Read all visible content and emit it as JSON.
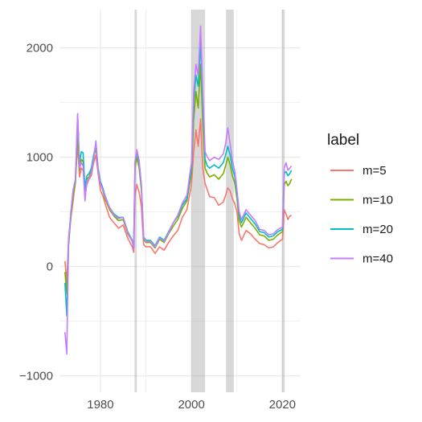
{
  "chart_data": {
    "type": "line",
    "title": "",
    "xlabel": "",
    "ylabel": "",
    "xlim": [
      1971,
      2024
    ],
    "ylim": [
      -1150,
      2350
    ],
    "x_ticks": [
      1980,
      2000,
      2020
    ],
    "x_tick_labels": [
      "1980",
      "2000",
      "2020"
    ],
    "y_ticks": [
      -1000,
      0,
      1000,
      2000
    ],
    "y_tick_labels": [
      "−1000",
      "0",
      "1000",
      "2000"
    ],
    "grid": true,
    "legend": {
      "title": "label",
      "position": "right"
    },
    "shaded_intervals": [
      [
        1987.5,
        1988.0
      ],
      [
        2000.0,
        2003.0
      ],
      [
        2007.6,
        2009.3
      ],
      [
        2019.9,
        2020.5
      ]
    ],
    "series": [
      {
        "name": "m=5",
        "color": "#F8766D",
        "points": [
          [
            1972.2,
            50
          ],
          [
            1972.6,
            -150
          ],
          [
            1973.0,
            250
          ],
          [
            1973.5,
            450
          ],
          [
            1974.0,
            600
          ],
          [
            1974.5,
            780
          ],
          [
            1975.0,
            1120
          ],
          [
            1975.4,
            820
          ],
          [
            1975.8,
            900
          ],
          [
            1976.2,
            880
          ],
          [
            1976.6,
            650
          ],
          [
            1977.0,
            750
          ],
          [
            1977.5,
            800
          ],
          [
            1978.0,
            830
          ],
          [
            1978.5,
            950
          ],
          [
            1979.0,
            1020
          ],
          [
            1979.5,
            850
          ],
          [
            1980.0,
            700
          ],
          [
            1980.5,
            650
          ],
          [
            1981.0,
            580
          ],
          [
            1982.0,
            450
          ],
          [
            1983.0,
            400
          ],
          [
            1984.0,
            350
          ],
          [
            1985.0,
            380
          ],
          [
            1986.0,
            260
          ],
          [
            1987.0,
            180
          ],
          [
            1987.3,
            130
          ],
          [
            1987.6,
            650
          ],
          [
            1988.0,
            750
          ],
          [
            1988.5,
            680
          ],
          [
            1989.0,
            550
          ],
          [
            1989.5,
            200
          ],
          [
            1990.0,
            180
          ],
          [
            1991.0,
            180
          ],
          [
            1992.0,
            120
          ],
          [
            1993.0,
            180
          ],
          [
            1994.0,
            150
          ],
          [
            1995.0,
            220
          ],
          [
            1996.0,
            280
          ],
          [
            1997.0,
            330
          ],
          [
            1998.0,
            450
          ],
          [
            1999.0,
            520
          ],
          [
            2000.0,
            750
          ],
          [
            2000.5,
            1050
          ],
          [
            2001.0,
            1250
          ],
          [
            2001.5,
            1100
          ],
          [
            2002.0,
            1350
          ],
          [
            2002.5,
            900
          ],
          [
            2003.0,
            760
          ],
          [
            2003.5,
            700
          ],
          [
            2004.0,
            640
          ],
          [
            2005.0,
            630
          ],
          [
            2006.0,
            560
          ],
          [
            2007.0,
            590
          ],
          [
            2007.5,
            650
          ],
          [
            2008.0,
            720
          ],
          [
            2008.5,
            690
          ],
          [
            2009.0,
            620
          ],
          [
            2009.5,
            580
          ],
          [
            2010.0,
            500
          ],
          [
            2010.5,
            300
          ],
          [
            2011.0,
            240
          ],
          [
            2012.0,
            330
          ],
          [
            2013.0,
            300
          ],
          [
            2014.0,
            250
          ],
          [
            2015.0,
            210
          ],
          [
            2016.0,
            200
          ],
          [
            2017.0,
            170
          ],
          [
            2018.0,
            180
          ],
          [
            2019.0,
            220
          ],
          [
            2020.0,
            250
          ],
          [
            2020.4,
            520
          ],
          [
            2020.8,
            480
          ],
          [
            2021.2,
            430
          ],
          [
            2021.6,
            460
          ],
          [
            2022.0,
            470
          ]
        ]
      },
      {
        "name": "m=10",
        "color": "#7CAE00",
        "points": [
          [
            1972.2,
            -50
          ],
          [
            1972.6,
            -250
          ],
          [
            1973.0,
            200
          ],
          [
            1973.5,
            450
          ],
          [
            1974.0,
            650
          ],
          [
            1974.5,
            760
          ],
          [
            1975.0,
            1200
          ],
          [
            1975.4,
            880
          ],
          [
            1975.8,
            980
          ],
          [
            1976.2,
            960
          ],
          [
            1976.6,
            700
          ],
          [
            1977.0,
            800
          ],
          [
            1977.5,
            820
          ],
          [
            1978.0,
            880
          ],
          [
            1978.5,
            1000
          ],
          [
            1979.0,
            1080
          ],
          [
            1979.5,
            880
          ],
          [
            1980.0,
            760
          ],
          [
            1980.5,
            700
          ],
          [
            1981.0,
            620
          ],
          [
            1982.0,
            520
          ],
          [
            1983.0,
            460
          ],
          [
            1984.0,
            420
          ],
          [
            1985.0,
            430
          ],
          [
            1986.0,
            300
          ],
          [
            1987.0,
            230
          ],
          [
            1987.3,
            160
          ],
          [
            1987.6,
            900
          ],
          [
            1988.0,
            1000
          ],
          [
            1988.5,
            900
          ],
          [
            1989.0,
            700
          ],
          [
            1989.5,
            250
          ],
          [
            1990.0,
            220
          ],
          [
            1991.0,
            220
          ],
          [
            1992.0,
            170
          ],
          [
            1993.0,
            250
          ],
          [
            1994.0,
            220
          ],
          [
            1995.0,
            300
          ],
          [
            1996.0,
            370
          ],
          [
            1997.0,
            430
          ],
          [
            1998.0,
            530
          ],
          [
            1999.0,
            600
          ],
          [
            2000.0,
            850
          ],
          [
            2000.5,
            1350
          ],
          [
            2001.0,
            1600
          ],
          [
            2001.5,
            1450
          ],
          [
            2002.0,
            1850
          ],
          [
            2002.5,
            1300
          ],
          [
            2003.0,
            900
          ],
          [
            2003.5,
            850
          ],
          [
            2004.0,
            820
          ],
          [
            2005.0,
            840
          ],
          [
            2006.0,
            800
          ],
          [
            2007.0,
            850
          ],
          [
            2007.5,
            920
          ],
          [
            2008.0,
            1000
          ],
          [
            2008.5,
            930
          ],
          [
            2009.0,
            830
          ],
          [
            2009.5,
            770
          ],
          [
            2010.0,
            620
          ],
          [
            2010.5,
            420
          ],
          [
            2011.0,
            360
          ],
          [
            2012.0,
            450
          ],
          [
            2013.0,
            400
          ],
          [
            2014.0,
            350
          ],
          [
            2015.0,
            290
          ],
          [
            2016.0,
            280
          ],
          [
            2017.0,
            240
          ],
          [
            2018.0,
            250
          ],
          [
            2019.0,
            290
          ],
          [
            2020.0,
            320
          ],
          [
            2020.4,
            750
          ],
          [
            2020.8,
            780
          ],
          [
            2021.2,
            740
          ],
          [
            2021.6,
            760
          ],
          [
            2022.0,
            800
          ]
        ]
      },
      {
        "name": "m=20",
        "color": "#00BFC4",
        "points": [
          [
            1972.2,
            -150
          ],
          [
            1972.6,
            -450
          ],
          [
            1973.0,
            200
          ],
          [
            1973.5,
            500
          ],
          [
            1974.0,
            700
          ],
          [
            1974.5,
            790
          ],
          [
            1975.0,
            1380
          ],
          [
            1975.4,
            950
          ],
          [
            1975.8,
            1050
          ],
          [
            1976.2,
            1040
          ],
          [
            1976.6,
            720
          ],
          [
            1977.0,
            830
          ],
          [
            1977.5,
            850
          ],
          [
            1978.0,
            900
          ],
          [
            1978.5,
            1020
          ],
          [
            1979.0,
            1120
          ],
          [
            1979.5,
            900
          ],
          [
            1980.0,
            780
          ],
          [
            1980.5,
            720
          ],
          [
            1981.0,
            650
          ],
          [
            1982.0,
            540
          ],
          [
            1983.0,
            480
          ],
          [
            1984.0,
            450
          ],
          [
            1985.0,
            450
          ],
          [
            1986.0,
            320
          ],
          [
            1987.0,
            240
          ],
          [
            1987.3,
            170
          ],
          [
            1987.6,
            950
          ],
          [
            1988.0,
            1050
          ],
          [
            1988.5,
            950
          ],
          [
            1989.0,
            740
          ],
          [
            1989.5,
            270
          ],
          [
            1990.0,
            240
          ],
          [
            1991.0,
            240
          ],
          [
            1992.0,
            190
          ],
          [
            1993.0,
            270
          ],
          [
            1994.0,
            240
          ],
          [
            1995.0,
            320
          ],
          [
            1996.0,
            400
          ],
          [
            1997.0,
            460
          ],
          [
            1998.0,
            560
          ],
          [
            1999.0,
            620
          ],
          [
            2000.0,
            900
          ],
          [
            2000.5,
            1500
          ],
          [
            2001.0,
            1750
          ],
          [
            2001.5,
            1650
          ],
          [
            2002.0,
            2050
          ],
          [
            2002.5,
            1500
          ],
          [
            2003.0,
            980
          ],
          [
            2003.5,
            920
          ],
          [
            2004.0,
            900
          ],
          [
            2005.0,
            930
          ],
          [
            2006.0,
            900
          ],
          [
            2007.0,
            950
          ],
          [
            2007.5,
            1020
          ],
          [
            2008.0,
            1100
          ],
          [
            2008.5,
            1020
          ],
          [
            2009.0,
            900
          ],
          [
            2009.5,
            830
          ],
          [
            2010.0,
            670
          ],
          [
            2010.5,
            470
          ],
          [
            2011.0,
            400
          ],
          [
            2012.0,
            490
          ],
          [
            2013.0,
            440
          ],
          [
            2014.0,
            390
          ],
          [
            2015.0,
            320
          ],
          [
            2016.0,
            310
          ],
          [
            2017.0,
            270
          ],
          [
            2018.0,
            280
          ],
          [
            2019.0,
            320
          ],
          [
            2020.0,
            340
          ],
          [
            2020.4,
            850
          ],
          [
            2020.8,
            870
          ],
          [
            2021.2,
            830
          ],
          [
            2021.6,
            850
          ],
          [
            2022.0,
            880
          ]
        ]
      },
      {
        "name": "m=40",
        "color": "#C77CFF",
        "points": [
          [
            1972.2,
            -600
          ],
          [
            1972.6,
            -800
          ],
          [
            1973.0,
            250
          ],
          [
            1973.5,
            500
          ],
          [
            1974.0,
            700
          ],
          [
            1974.5,
            800
          ],
          [
            1975.0,
            1400
          ],
          [
            1975.4,
            900
          ],
          [
            1975.8,
            950
          ],
          [
            1976.2,
            920
          ],
          [
            1976.6,
            600
          ],
          [
            1977.0,
            780
          ],
          [
            1977.5,
            800
          ],
          [
            1978.0,
            860
          ],
          [
            1978.5,
            980
          ],
          [
            1979.0,
            1150
          ],
          [
            1979.5,
            880
          ],
          [
            1980.0,
            760
          ],
          [
            1980.5,
            700
          ],
          [
            1981.0,
            640
          ],
          [
            1982.0,
            540
          ],
          [
            1983.0,
            470
          ],
          [
            1984.0,
            440
          ],
          [
            1985.0,
            450
          ],
          [
            1986.0,
            310
          ],
          [
            1987.0,
            230
          ],
          [
            1987.3,
            160
          ],
          [
            1987.6,
            960
          ],
          [
            1988.0,
            1070
          ],
          [
            1988.5,
            970
          ],
          [
            1989.0,
            750
          ],
          [
            1989.5,
            260
          ],
          [
            1990.0,
            230
          ],
          [
            1991.0,
            230
          ],
          [
            1992.0,
            180
          ],
          [
            1993.0,
            260
          ],
          [
            1994.0,
            230
          ],
          [
            1995.0,
            310
          ],
          [
            1996.0,
            400
          ],
          [
            1997.0,
            470
          ],
          [
            1998.0,
            580
          ],
          [
            1999.0,
            650
          ],
          [
            2000.0,
            950
          ],
          [
            2000.5,
            1600
          ],
          [
            2001.0,
            1850
          ],
          [
            2001.5,
            1750
          ],
          [
            2002.0,
            2200
          ],
          [
            2002.5,
            1600
          ],
          [
            2003.0,
            1050
          ],
          [
            2003.5,
            1000
          ],
          [
            2004.0,
            970
          ],
          [
            2005.0,
            1000
          ],
          [
            2006.0,
            980
          ],
          [
            2007.0,
            1030
          ],
          [
            2007.5,
            1120
          ],
          [
            2008.0,
            1270
          ],
          [
            2008.5,
            1120
          ],
          [
            2009.0,
            970
          ],
          [
            2009.5,
            880
          ],
          [
            2010.0,
            700
          ],
          [
            2010.5,
            500
          ],
          [
            2011.0,
            430
          ],
          [
            2012.0,
            520
          ],
          [
            2013.0,
            470
          ],
          [
            2014.0,
            420
          ],
          [
            2015.0,
            340
          ],
          [
            2016.0,
            330
          ],
          [
            2017.0,
            290
          ],
          [
            2018.0,
            300
          ],
          [
            2019.0,
            340
          ],
          [
            2020.0,
            360
          ],
          [
            2020.4,
            900
          ],
          [
            2020.8,
            950
          ],
          [
            2021.2,
            880
          ],
          [
            2021.6,
            900
          ],
          [
            2022.0,
            920
          ]
        ]
      }
    ]
  }
}
